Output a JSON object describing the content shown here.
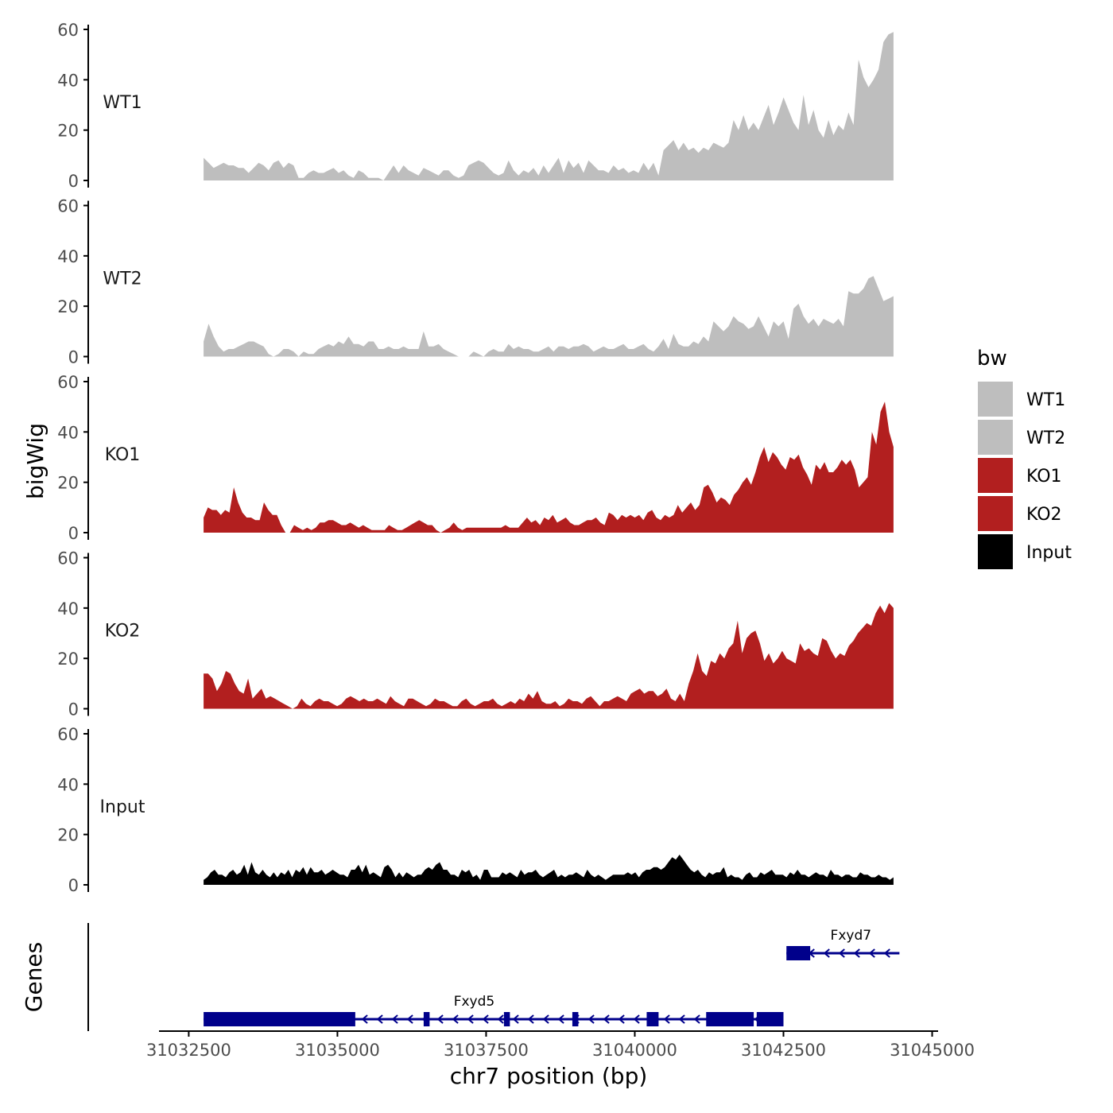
{
  "chart_data": {
    "type": "area",
    "title": "",
    "ylabel": "bigWig",
    "genes_label": "Genes",
    "xlabel": "chr7 position (bp)",
    "xlim": [
      31032000,
      31045100
    ],
    "x_ticks": [
      31032500,
      31035000,
      31037500,
      31040000,
      31042500,
      31045000
    ],
    "x_tick_labels": [
      "31032500",
      "31035000",
      "31037500",
      "31040000",
      "31042500",
      "31045000"
    ],
    "ylim": [
      0,
      60
    ],
    "y_ticks": [
      0,
      20,
      40,
      60
    ],
    "y_tick_labels": [
      "0",
      "20",
      "40",
      "60"
    ],
    "x_start": 31032750,
    "x_end": 31044350,
    "legend": {
      "title": "bw",
      "position": "right",
      "entries": [
        {
          "label": "WT1",
          "color": "#bebebe"
        },
        {
          "label": "WT2",
          "color": "#bebebe"
        },
        {
          "label": "KO1",
          "color": "#b21f1f"
        },
        {
          "label": "KO2",
          "color": "#b21f1f"
        },
        {
          "label": "Input",
          "color": "#000000"
        }
      ]
    },
    "series": [
      {
        "name": "WT1",
        "color": "#bebebe",
        "values": [
          9,
          7,
          5,
          6,
          7,
          6,
          6,
          5,
          5,
          3,
          5,
          7,
          6,
          4,
          7,
          8,
          5,
          7,
          6,
          1,
          1,
          3,
          4,
          3,
          3,
          4,
          5,
          3,
          4,
          2,
          1,
          4,
          3,
          1,
          1,
          1,
          0,
          3,
          6,
          3,
          6,
          4,
          3,
          2,
          5,
          4,
          3,
          2,
          4,
          4,
          2,
          1,
          2,
          6,
          7,
          8,
          7,
          5,
          3,
          2,
          3,
          8,
          4,
          2,
          4,
          3,
          5,
          2,
          6,
          3,
          6,
          9,
          3,
          8,
          5,
          7,
          3,
          8,
          6,
          4,
          4,
          3,
          6,
          4,
          5,
          3,
          4,
          3,
          7,
          4,
          7,
          2,
          12,
          14,
          16,
          12,
          15,
          12,
          13,
          11,
          13,
          12,
          15,
          14,
          13,
          15,
          24,
          20,
          26,
          20,
          23,
          20,
          25,
          30,
          22,
          27,
          33,
          28,
          23,
          20,
          34,
          22,
          28,
          20,
          17,
          24,
          18,
          22,
          20,
          27,
          22,
          48,
          41,
          37,
          40,
          44,
          55,
          58,
          59
        ]
      },
      {
        "name": "WT2",
        "color": "#bebebe",
        "values": [
          6,
          13,
          8,
          4,
          2,
          3,
          3,
          4,
          5,
          6,
          6,
          5,
          4,
          1,
          0,
          1,
          3,
          3,
          2,
          0,
          2,
          1,
          1,
          3,
          4,
          5,
          4,
          6,
          5,
          8,
          5,
          5,
          4,
          6,
          6,
          3,
          3,
          4,
          3,
          3,
          4,
          3,
          3,
          3,
          10,
          4,
          4,
          5,
          3,
          2,
          1,
          0,
          0,
          0,
          2,
          1,
          0,
          2,
          3,
          2,
          2,
          5,
          3,
          4,
          3,
          3,
          2,
          2,
          3,
          4,
          2,
          4,
          4,
          3,
          4,
          4,
          5,
          4,
          2,
          3,
          4,
          3,
          3,
          4,
          5,
          3,
          3,
          4,
          5,
          3,
          2,
          4,
          7,
          3,
          9,
          5,
          4,
          4,
          6,
          5,
          8,
          6,
          14,
          12,
          10,
          12,
          16,
          14,
          13,
          11,
          12,
          16,
          12,
          8,
          14,
          12,
          14,
          7,
          19,
          21,
          16,
          13,
          15,
          12,
          15,
          14,
          13,
          15,
          12,
          26,
          25,
          25,
          27,
          31,
          32,
          27,
          22,
          23,
          24
        ]
      },
      {
        "name": "KO1",
        "color": "#b21f1f",
        "values": [
          6,
          10,
          9,
          9,
          7,
          9,
          8,
          18,
          12,
          8,
          6,
          6,
          5,
          5,
          12,
          9,
          7,
          7,
          3,
          0,
          0,
          3,
          2,
          1,
          2,
          1,
          2,
          4,
          4,
          5,
          5,
          4,
          3,
          3,
          4,
          3,
          2,
          3,
          2,
          1,
          1,
          1,
          1,
          3,
          2,
          1,
          1,
          2,
          3,
          4,
          5,
          4,
          3,
          3,
          1,
          0,
          1,
          2,
          4,
          2,
          1,
          2,
          2,
          2,
          2,
          2,
          2,
          2,
          2,
          2,
          3,
          2,
          2,
          2,
          4,
          6,
          4,
          5,
          3,
          6,
          5,
          7,
          4,
          5,
          6,
          4,
          3,
          3,
          4,
          5,
          5,
          6,
          4,
          3,
          8,
          7,
          5,
          7,
          6,
          7,
          6,
          7,
          5,
          8,
          9,
          6,
          5,
          7,
          6,
          7,
          11,
          8,
          10,
          12,
          9,
          11,
          18,
          19,
          16,
          12,
          14,
          13,
          11,
          15,
          17,
          20,
          22,
          19,
          24,
          30,
          34,
          28,
          32,
          30,
          27,
          25,
          30,
          29,
          31,
          26,
          23,
          19,
          27,
          25,
          28,
          24,
          24,
          26,
          29,
          27,
          29,
          25,
          18,
          20,
          22,
          40,
          35,
          48,
          52,
          40,
          34
        ]
      },
      {
        "name": "KO2",
        "color": "#b21f1f",
        "values": [
          14,
          14,
          12,
          7,
          10,
          15,
          14,
          10,
          7,
          6,
          12,
          4,
          6,
          8,
          4,
          5,
          4,
          3,
          2,
          1,
          0,
          1,
          4,
          2,
          1,
          3,
          4,
          3,
          3,
          2,
          1,
          2,
          4,
          5,
          4,
          3,
          4,
          3,
          3,
          4,
          3,
          2,
          5,
          3,
          2,
          1,
          4,
          4,
          3,
          2,
          1,
          2,
          4,
          3,
          3,
          2,
          1,
          1,
          3,
          4,
          2,
          1,
          2,
          3,
          3,
          4,
          2,
          1,
          2,
          3,
          2,
          4,
          3,
          6,
          4,
          7,
          3,
          2,
          2,
          3,
          1,
          2,
          4,
          3,
          3,
          2,
          4,
          5,
          3,
          1,
          3,
          3,
          4,
          5,
          4,
          3,
          6,
          7,
          8,
          6,
          7,
          7,
          5,
          6,
          8,
          4,
          3,
          6,
          3,
          10,
          15,
          22,
          15,
          13,
          19,
          18,
          22,
          20,
          24,
          26,
          35,
          22,
          28,
          30,
          31,
          26,
          19,
          22,
          18,
          20,
          23,
          20,
          19,
          18,
          26,
          23,
          24,
          22,
          21,
          28,
          27,
          23,
          20,
          22,
          21,
          25,
          27,
          30,
          32,
          34,
          33,
          38,
          41,
          38,
          42,
          40
        ]
      },
      {
        "name": "Input",
        "color": "#000000",
        "values": [
          2,
          3,
          5,
          6,
          4,
          4,
          3,
          5,
          6,
          4,
          5,
          8,
          4,
          9,
          5,
          4,
          6,
          4,
          3,
          5,
          3,
          5,
          4,
          6,
          3,
          6,
          5,
          7,
          4,
          7,
          5,
          5,
          6,
          4,
          5,
          6,
          5,
          4,
          4,
          3,
          6,
          6,
          8,
          5,
          8,
          4,
          5,
          4,
          3,
          7,
          8,
          6,
          3,
          5,
          3,
          5,
          4,
          3,
          4,
          4,
          6,
          7,
          6,
          8,
          9,
          6,
          6,
          4,
          4,
          3,
          6,
          5,
          6,
          3,
          4,
          2,
          6,
          6,
          3,
          3,
          3,
          5,
          4,
          5,
          4,
          3,
          6,
          4,
          5,
          5,
          6,
          4,
          3,
          4,
          5,
          6,
          3,
          4,
          3,
          4,
          4,
          5,
          4,
          3,
          6,
          4,
          3,
          4,
          3,
          2,
          3,
          4,
          4,
          4,
          4,
          5,
          4,
          5,
          3,
          5,
          6,
          6,
          7,
          7,
          6,
          7,
          9,
          11,
          10,
          12,
          10,
          8,
          6,
          5,
          6,
          4,
          3,
          5,
          4,
          5,
          5,
          7,
          3,
          4,
          3,
          3,
          2,
          4,
          5,
          3,
          3,
          5,
          4,
          5,
          6,
          4,
          4,
          4,
          3,
          5,
          4,
          6,
          4,
          4,
          3,
          4,
          5,
          4,
          4,
          3,
          6,
          4,
          4,
          3,
          4,
          4,
          3,
          3,
          5,
          4,
          4,
          3,
          3,
          4,
          3,
          3,
          2,
          3
        ]
      }
    ],
    "genes": [
      {
        "name": "Fxyd7",
        "color": "#00008b",
        "start": 31042550,
        "end": 31044450,
        "strand": "-",
        "exons": [
          [
            31042550,
            31042950
          ]
        ]
      },
      {
        "name": "Fxyd5",
        "color": "#00008b",
        "start": 31032750,
        "end": 31042500,
        "strand": "-",
        "exons": [
          [
            31032750,
            31035300
          ],
          [
            31036450,
            31036550
          ],
          [
            31037800,
            31037900
          ],
          [
            31038950,
            31039050
          ],
          [
            31040200,
            31040400
          ],
          [
            31041200,
            31041500
          ],
          [
            31041450,
            31042000
          ],
          [
            31042050,
            31042500
          ]
        ]
      }
    ]
  }
}
